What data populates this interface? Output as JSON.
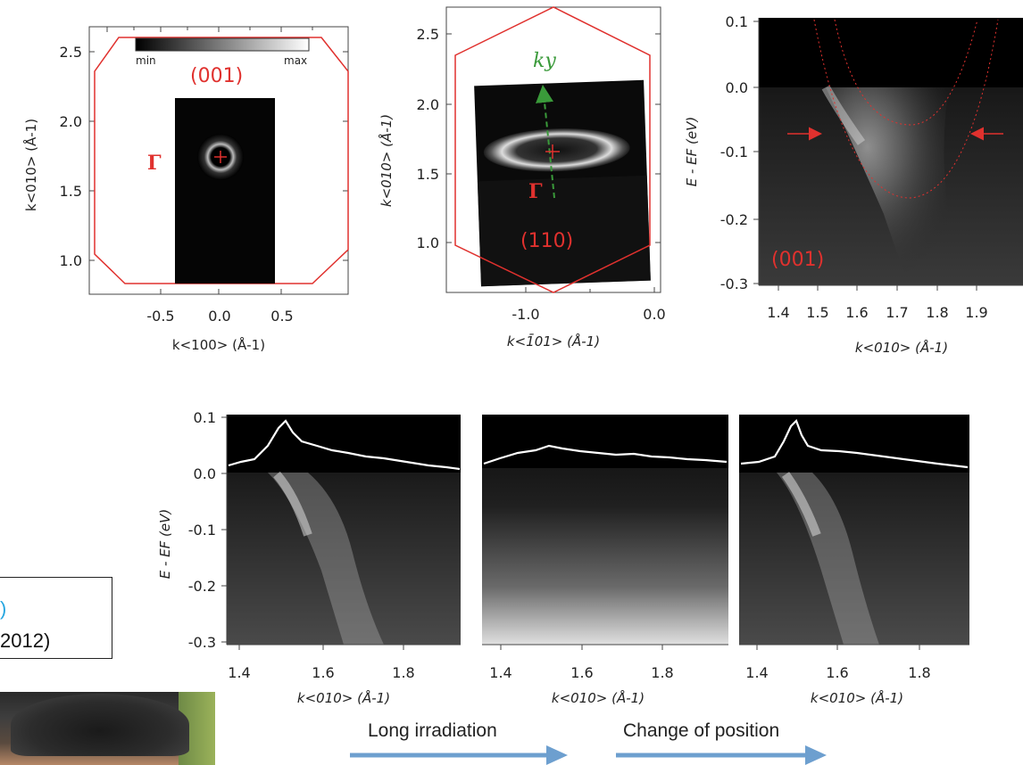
{
  "panels": {
    "p001": {
      "region_label": "(001)",
      "gamma": "Γ",
      "colorbar": {
        "min": "min",
        "max": "max"
      },
      "yticks": [
        "2.5",
        "2.0",
        "1.5",
        "1.0"
      ],
      "xticks": [
        "-0.5",
        "0.0",
        "0.5"
      ],
      "ylabel": "k<010> (Å-1)",
      "xlabel": "k<100> (Å-1)"
    },
    "p110": {
      "region_label": "(110)",
      "gamma": "Γ",
      "ky": "ky",
      "yticks": [
        "2.5",
        "2.0",
        "1.5",
        "1.0"
      ],
      "xticks": [
        "-1.0",
        "0.0"
      ],
      "ylabel": "k<010> (Å-1)",
      "xlabel": "k<1̄01> (Å-1)"
    },
    "dispersion": {
      "region_label": "(001)",
      "yticks": [
        "0.1",
        "0.0",
        "-0.1",
        "-0.2",
        "-0.3"
      ],
      "xticks": [
        "1.4",
        "1.5",
        "1.6",
        "1.7",
        "1.8",
        "1.9"
      ],
      "ylabel": "E - EF (eV)",
      "xlabel": "k<010> (Å-1)"
    },
    "bottom": {
      "yticks": [
        "0.1",
        "0.0",
        "-0.1",
        "-0.2",
        "-0.3"
      ],
      "xticks": [
        "1.4",
        "1.6",
        "1.8"
      ],
      "ylabel": "E - EF (eV)",
      "xlabel": "k<010> (Å-1)"
    }
  },
  "captions": {
    "long_irradiation": "Long irradiation",
    "change_position": "Change of position"
  },
  "citation": {
    "year": "2012)",
    "bullet": ")"
  },
  "colors": {
    "accent_red": "#e0312e",
    "accent_green": "#3a9a3a",
    "arrow_blue": "#6d9fcf"
  }
}
